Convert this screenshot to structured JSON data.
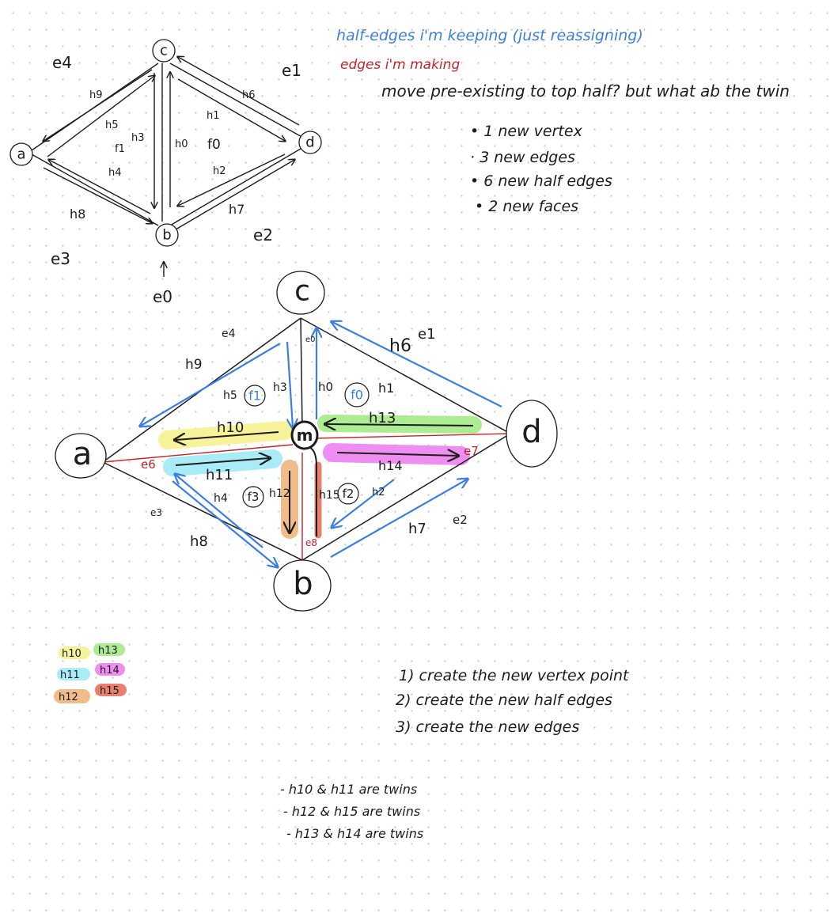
{
  "legend_top": {
    "keeping": "half-edges i'm keeping (just reassigning)",
    "making": "edges i'm making",
    "question": "move pre-existing to top half? but what ab the twin"
  },
  "counts": [
    "• 1 new vertex",
    "· 3 new edges",
    "• 6 new half edges",
    "• 2 new faces"
  ],
  "steps": [
    "1) create the new vertex point",
    "2) create the new half edges",
    "3) create the new edges"
  ],
  "twins": [
    "- h10 & h11 are twins",
    "- h12 & h15 are twins",
    "- h13 & h14 are twins"
  ],
  "colors": {
    "blue": "#3d7fe0",
    "red": "#c0262b",
    "ink": "#1c1c1c",
    "yellow": "#f7f39a",
    "cyan": "#a9ecf8",
    "orange": "#f0bc8a",
    "green": "#aeec94",
    "magenta": "#ee8ef1",
    "salmon": "#e8806e"
  },
  "color_key": [
    {
      "label": "h10",
      "color": "#f7f39a"
    },
    {
      "label": "h13",
      "color": "#aeec94"
    },
    {
      "label": "h11",
      "color": "#a9ecf8"
    },
    {
      "label": "h14",
      "color": "#ee8ef1"
    },
    {
      "label": "h12",
      "color": "#f0bc8a"
    },
    {
      "label": "h15",
      "color": "#e8806e"
    }
  ],
  "small_diagram": {
    "vertices": [
      "c",
      "a",
      "d",
      "b"
    ],
    "edges": [
      "e4",
      "e1",
      "e3",
      "e2",
      "e0"
    ],
    "halfedges": [
      "h9",
      "h6",
      "h5",
      "h3",
      "h1",
      "h0",
      "h2",
      "h4",
      "h8",
      "h7"
    ],
    "faces": [
      "f1",
      "f0"
    ]
  },
  "large_diagram": {
    "vertices": [
      "c",
      "a",
      "d",
      "b",
      "m"
    ],
    "edges": [
      "e4",
      "e1",
      "e0",
      "e6",
      "e7",
      "e3",
      "e8",
      "e2"
    ],
    "halfedges": [
      "h9",
      "h6",
      "h5",
      "h3",
      "h0",
      "h1",
      "h10",
      "h13",
      "h11",
      "h14",
      "h4",
      "h12",
      "h15",
      "h2",
      "h8",
      "h7"
    ],
    "faces": [
      "f1",
      "f0",
      "f3",
      "f2"
    ]
  }
}
